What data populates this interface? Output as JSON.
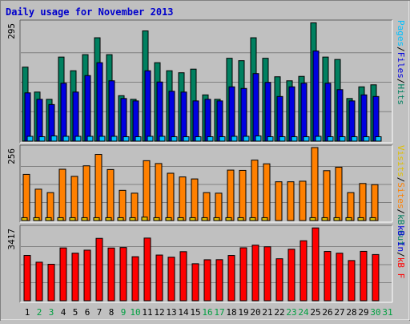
{
  "chart_data": {
    "type": "bar",
    "title": "Daily usage for November 2013",
    "days": [
      "1",
      "2",
      "3",
      "4",
      "5",
      "6",
      "7",
      "8",
      "9",
      "10",
      "11",
      "12",
      "13",
      "14",
      "15",
      "16",
      "17",
      "18",
      "19",
      "20",
      "21",
      "22",
      "23",
      "24",
      "25",
      "26",
      "27",
      "28",
      "29",
      "30",
      "31"
    ],
    "weekend_days": [
      "2",
      "3",
      "9",
      "10",
      "16",
      "17",
      "23",
      "24",
      "30",
      "31"
    ],
    "colors": {
      "title": "#0000cc",
      "hits": "#008060",
      "files": "#0000e0",
      "pages": "#00c0ff",
      "visits": "#e0c000",
      "sites": "#ff8000",
      "kbin": "#008040",
      "kbout": "#008060",
      "kbf": "#ff0000",
      "weekday_label": "#000000",
      "weekend_label": "#00a040"
    },
    "panels": [
      {
        "id": "top",
        "max_label": "295",
        "ymax": 295,
        "legend": [
          {
            "text": "Pages",
            "color": "#00c0ff"
          },
          {
            "text": "/",
            "color": "#000000"
          },
          {
            "text": "Files",
            "color": "#0000e0"
          },
          {
            "text": "/",
            "color": "#000000"
          },
          {
            "text": "Hits",
            "color": "#008060"
          }
        ],
        "series": [
          {
            "name": "Hits",
            "color": "#008060",
            "values": [
              184,
              122,
              104,
              209,
              175,
              215,
              257,
              215,
              113,
              104,
              274,
              195,
              175,
              170,
              179,
              115,
              104,
              206,
              200,
              257,
              206,
              160,
              150,
              161,
              294,
              209,
              203,
              106,
              135,
              140,
              0
            ]
          },
          {
            "name": "Files",
            "color": "#0000e0",
            "values": [
              120,
              104,
              91,
              144,
              122,
              163,
              195,
              150,
              106,
              100,
              175,
              147,
              124,
              122,
              100,
              104,
              100,
              135,
              131,
              168,
              146,
              111,
              135,
              144,
              224,
              144,
              128,
              100,
              115,
              111,
              0
            ]
          },
          {
            "name": "Pages",
            "color": "#00c0ff",
            "values": [
              12,
              11,
              13,
              12,
              12,
              12,
              12,
              12,
              11,
              11,
              12,
              12,
              11,
              11,
              11,
              11,
              11,
              12,
              12,
              13,
              11,
              11,
              11,
              11,
              12,
              11,
              11,
              11,
              11,
              11,
              0
            ]
          }
        ]
      },
      {
        "id": "middle",
        "max_label": "256",
        "ymax": 256,
        "legend": [
          {
            "text": "Visits",
            "color": "#e0c000"
          },
          {
            "text": "/",
            "color": "#000000"
          },
          {
            "text": "Sites",
            "color": "#ff8000"
          },
          {
            "text": "/",
            "color": "#000000"
          },
          {
            "text": "kB Out",
            "color": "#008060"
          }
        ],
        "series": [
          {
            "name": "Sites",
            "color": "#ff8000",
            "values": [
              162,
              110,
              98,
              180,
              155,
              192,
              232,
              179,
              106,
              96,
              210,
              200,
              166,
              153,
              146,
              98,
              96,
              177,
              176,
              212,
              199,
              136,
              136,
              138,
              256,
              175,
              187,
              98,
              130,
              126,
              0
            ]
          },
          {
            "name": "Visits",
            "color": "#e0c000",
            "values": [
              10,
              10,
              10,
              10,
              10,
              10,
              10,
              10,
              10,
              10,
              12,
              10,
              10,
              10,
              10,
              10,
              10,
              10,
              10,
              10,
              10,
              0,
              0,
              0,
              10,
              10,
              10,
              10,
              10,
              10,
              0
            ]
          }
        ]
      },
      {
        "id": "bottom",
        "max_label": "3417",
        "ymax": 3417,
        "legend": [
          {
            "text": "kB In",
            "color": "#0000e0"
          },
          {
            "text": "/",
            "color": "#000000"
          },
          {
            "text": "kB F",
            "color": "#ff0000"
          }
        ],
        "series": [
          {
            "name": "kB F",
            "color": "#ff0000",
            "values": [
              2120,
              1805,
              1709,
              2473,
              2228,
              2368,
              2920,
              2469,
              2491,
              2062,
              2934,
              2139,
              2040,
              2297,
              1732,
              1918,
              1922,
              2119,
              2479,
              2603,
              2526,
              1966,
              2413,
              2809,
              3410,
              2307,
              2228,
              1882,
              2312,
              2163,
              0
            ]
          }
        ]
      }
    ]
  }
}
